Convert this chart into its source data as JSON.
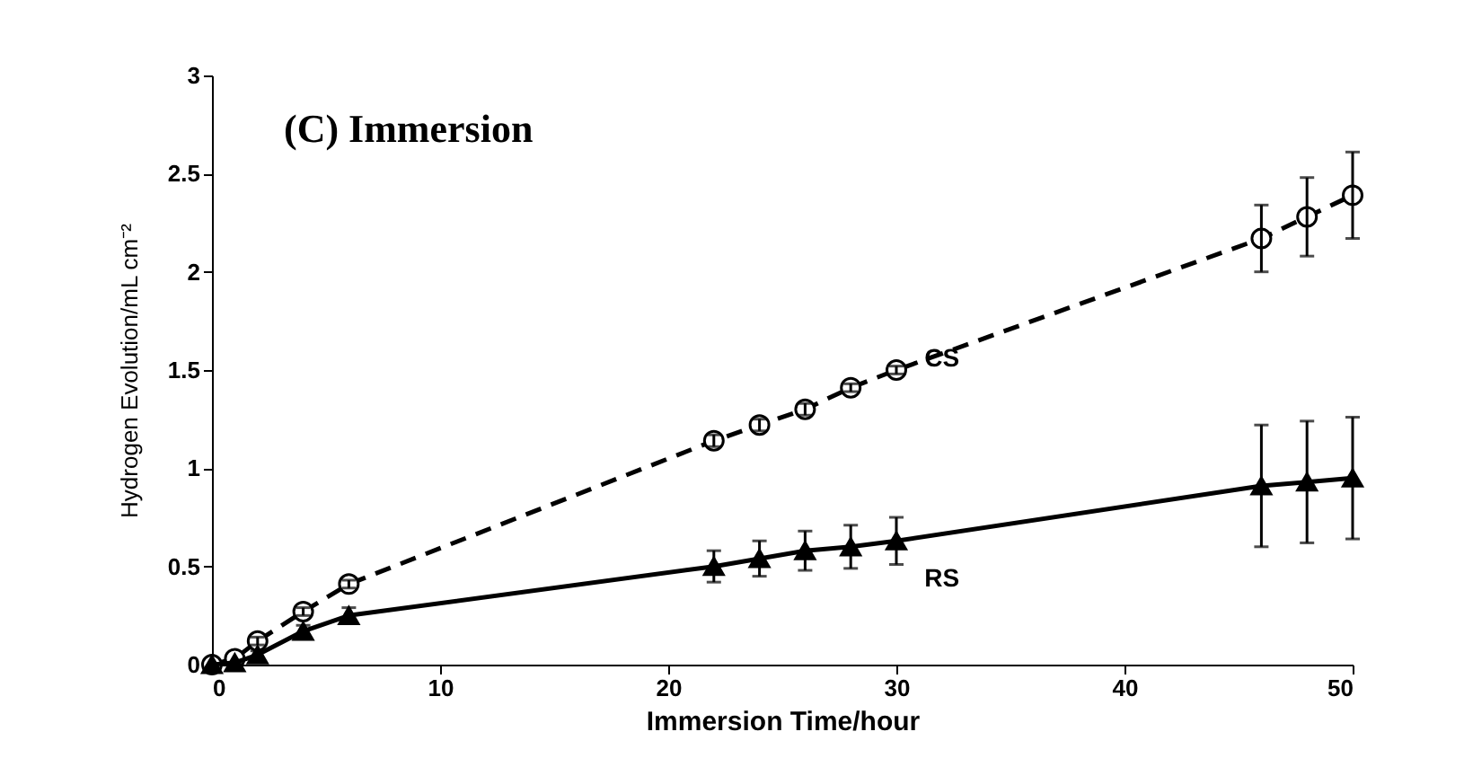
{
  "chart_data": {
    "type": "line",
    "xlabel": "Immersion Time/hour",
    "ylabel": "Hydrogen Evolution/mL cm⁻²",
    "annotations": [
      "(C) Immersion"
    ],
    "x": [
      0,
      1,
      2,
      4,
      6,
      22,
      24,
      26,
      28,
      30,
      46,
      48,
      50
    ],
    "series": [
      {
        "name": "CS",
        "color": "#000000",
        "marker": "circle",
        "line_style": "dashed",
        "values": [
          0,
          0.03,
          0.12,
          0.27,
          0.41,
          1.14,
          1.22,
          1.3,
          1.41,
          1.5,
          2.17,
          2.28,
          2.39
        ],
        "errors": [
          null,
          null,
          0.02,
          0.02,
          0.02,
          0.03,
          0.03,
          0.03,
          0.02,
          0.02,
          0.17,
          0.2,
          0.22
        ]
      },
      {
        "name": "RS",
        "color": "#000000",
        "marker": "triangle",
        "line_style": "solid",
        "values": [
          0,
          0.01,
          0.05,
          0.17,
          0.25,
          0.5,
          0.54,
          0.58,
          0.6,
          0.63,
          0.91,
          0.93,
          0.95
        ],
        "errors": [
          null,
          null,
          0.02,
          0.03,
          0.04,
          0.08,
          0.09,
          0.1,
          0.11,
          0.12,
          0.31,
          0.31,
          0.31
        ]
      }
    ],
    "xlim": [
      0,
      50
    ],
    "xticks": [
      0,
      10,
      20,
      30,
      40,
      50
    ],
    "ylim": [
      0,
      3
    ],
    "yticks": [
      0,
      0.5,
      1,
      1.5,
      2,
      2.5,
      3
    ],
    "grid": false
  }
}
